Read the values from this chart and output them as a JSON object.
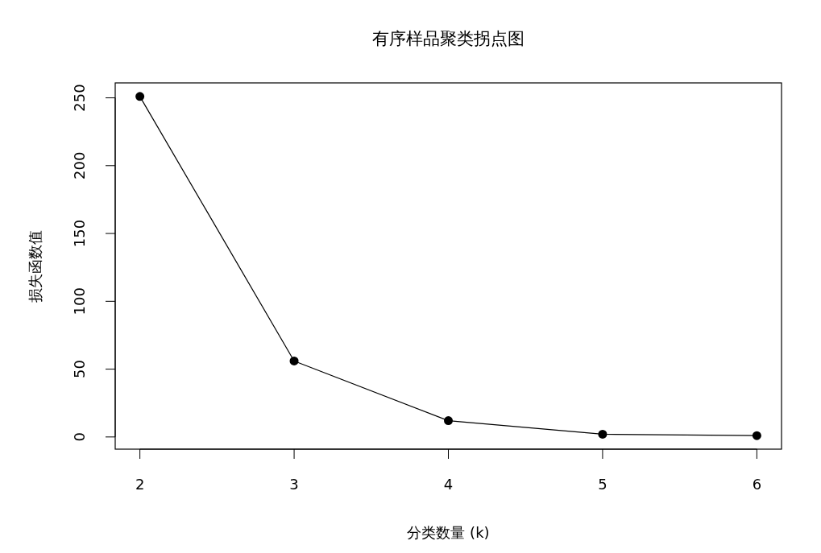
{
  "chart_data": {
    "type": "line",
    "title": "有序样品聚类拐点图",
    "xlabel": "分类数量 (k)",
    "ylabel": "损失函数值",
    "x": [
      2,
      3,
      4,
      5,
      6
    ],
    "series": [
      {
        "color": "#000000",
        "values": [
          251,
          56,
          12,
          2,
          1
        ]
      }
    ],
    "xlim": [
      1.84,
      6.16
    ],
    "ylim": [
      -9,
      261
    ],
    "xticks": [
      2,
      3,
      4,
      5,
      6
    ],
    "yticks": [
      0,
      50,
      100,
      150,
      200,
      250
    ],
    "marker": "circle",
    "line_style": "solid"
  }
}
